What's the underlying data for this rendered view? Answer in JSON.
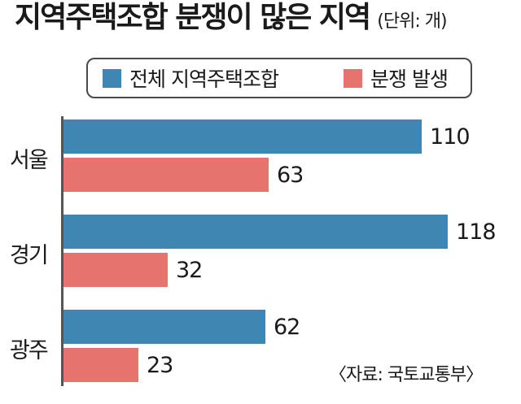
{
  "title": "지역주택조합 분쟁이 많은 지역",
  "unit": "(단위: 개)",
  "source": "〈자료: 국토교통부〉",
  "colors": {
    "total": "#3f86b3",
    "dispute": "#e6736e"
  },
  "chart_data": {
    "type": "bar",
    "orientation": "horizontal",
    "title": "지역주택조합 분쟁이 많은 지역",
    "categories": [
      "서울",
      "경기",
      "광주"
    ],
    "series": [
      {
        "name": "전체 지역주택조합",
        "values": [
          110,
          118,
          62
        ]
      },
      {
        "name": "분쟁 발생",
        "values": [
          63,
          32,
          23
        ]
      }
    ],
    "value_labels": [
      [
        "110",
        "118",
        "62"
      ],
      [
        "63",
        "32",
        "23"
      ]
    ],
    "xlim": [
      0,
      130
    ],
    "grid": false,
    "legend": "top"
  }
}
